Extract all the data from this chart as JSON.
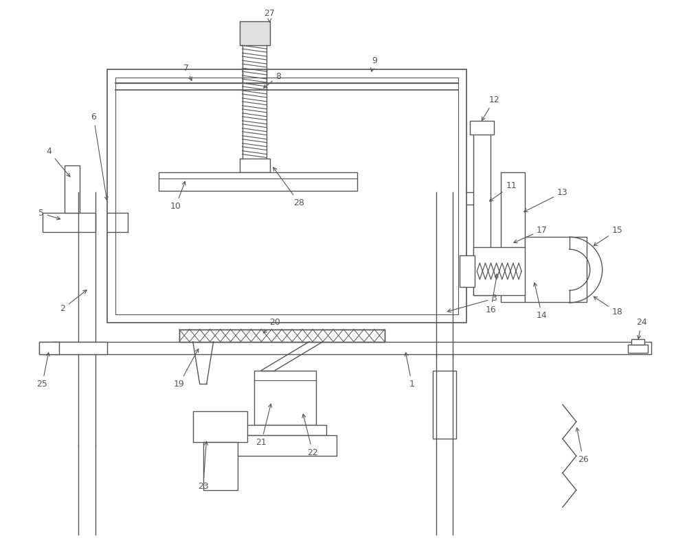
{
  "bg_color": "#ffffff",
  "lc": "#555555",
  "lw": 1.0,
  "fig_w": 10.0,
  "fig_h": 8.07
}
